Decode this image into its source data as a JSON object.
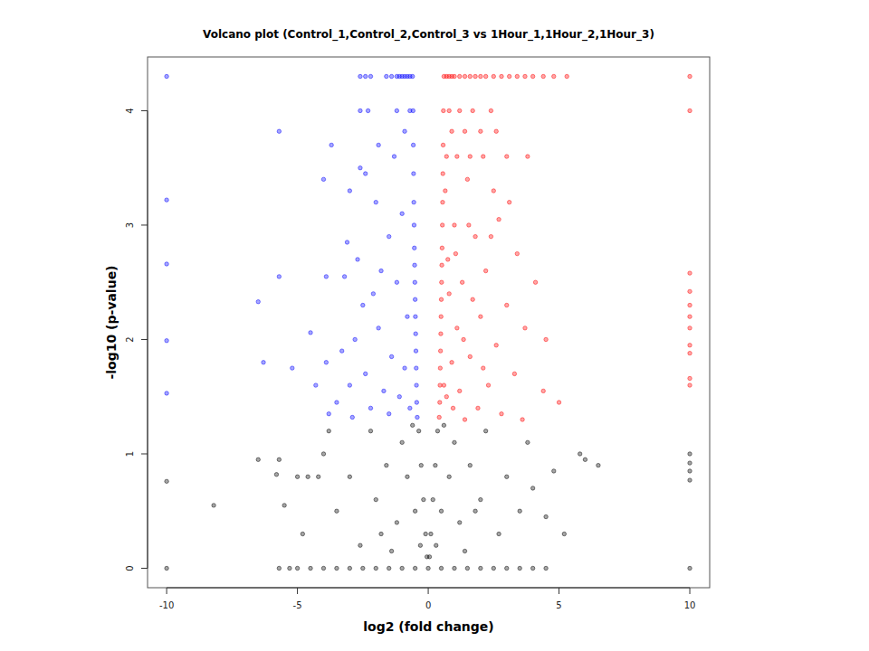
{
  "chart_data": {
    "type": "scatter",
    "title": "Volcano plot (Control_1,Control_2,Control_3 vs 1Hour_1,1Hour_2,1Hour_3)",
    "x_label": "log2 (fold change)",
    "y_label": "-log10 (p-value)",
    "xlim": [
      -10.73,
      10.76
    ],
    "ylim": [
      -0.17,
      4.47
    ],
    "xticks": [
      -10,
      -5,
      0,
      5,
      10
    ],
    "yticks": [
      0,
      1,
      2,
      3,
      4
    ],
    "grid": false,
    "marker": "circle",
    "series": [
      {
        "color": "#0000ff",
        "x": [
          -0.42,
          -0.44,
          -0.45,
          -0.46,
          -0.47,
          -0.48,
          -0.49,
          -0.5,
          -0.51,
          -0.52,
          -0.53,
          -0.54,
          -0.55,
          -0.56,
          -0.57,
          -0.58,
          -0.6,
          -0.7,
          -0.8,
          -0.9,
          -1.0,
          -1.1,
          -1.2,
          -1.4,
          -1.6,
          -2.2,
          -2.4,
          -2.6,
          -10,
          -0.7,
          -1.2,
          -2.3,
          -2.6,
          -5.7,
          -3.7,
          -1.9,
          -0.9,
          -1.3,
          -2.4,
          -2.6,
          -3.0,
          -4.0,
          -2.0,
          -1.0,
          -10,
          -1.5,
          -3.1,
          -2.7,
          -3.2,
          -3.9,
          -1.8,
          -2.1,
          -2.5,
          -1.2,
          -0.8,
          -6.5,
          -5.7,
          -10,
          -4.5,
          -2.8,
          -3.3,
          -1.9,
          -1.4,
          -0.9,
          -6.3,
          -5.2,
          -3.9,
          -10,
          -2.4,
          -3.0,
          -4.3,
          -1.7,
          -1.1,
          -10,
          -3.5,
          -2.2,
          -3.8,
          -0.7,
          -1.5,
          -2.9
        ],
        "values": [
          1.32,
          1.45,
          1.6,
          1.75,
          1.9,
          2.05,
          2.2,
          2.35,
          2.5,
          2.65,
          2.8,
          3.0,
          3.2,
          3.45,
          3.7,
          4.0,
          4.3,
          4.3,
          4.3,
          4.3,
          4.3,
          4.3,
          4.3,
          4.3,
          4.3,
          4.3,
          4.3,
          4.3,
          4.3,
          4.0,
          4.0,
          4.0,
          4.0,
          3.82,
          3.7,
          3.7,
          3.82,
          3.6,
          3.45,
          3.5,
          3.3,
          3.4,
          3.2,
          3.1,
          3.22,
          2.9,
          2.85,
          2.7,
          2.55,
          2.55,
          2.6,
          2.4,
          2.3,
          2.5,
          2.2,
          2.33,
          2.55,
          2.66,
          2.06,
          2.0,
          1.9,
          2.1,
          1.85,
          1.75,
          1.8,
          1.75,
          1.8,
          1.99,
          1.7,
          1.6,
          1.6,
          1.55,
          1.5,
          1.53,
          1.45,
          1.4,
          1.35,
          1.4,
          1.35,
          1.32
        ]
      },
      {
        "color": "#ff0000",
        "x": [
          0.42,
          0.44,
          0.45,
          0.46,
          0.47,
          0.48,
          0.49,
          0.5,
          0.51,
          0.52,
          0.53,
          0.54,
          0.55,
          0.56,
          0.57,
          0.58,
          0.6,
          0.7,
          0.8,
          0.9,
          1.0,
          1.2,
          1.4,
          1.6,
          1.8,
          2.0,
          2.2,
          2.5,
          2.8,
          3.1,
          3.4,
          3.7,
          4.0,
          4.4,
          4.8,
          5.3,
          10,
          0.8,
          1.2,
          1.7,
          2.4,
          10,
          0.9,
          1.4,
          2.0,
          2.6,
          0.7,
          1.1,
          1.6,
          2.1,
          3.0,
          3.8,
          1.5,
          2.5,
          3.1,
          1.0,
          2.7,
          1.8,
          3.4,
          4.1,
          2.2,
          1.3,
          0.8,
          3.0,
          2.0,
          1.1,
          3.7,
          4.5,
          2.6,
          1.6,
          0.9,
          3.3,
          2.3,
          1.2,
          4.4,
          5.0,
          0.7,
          1.9,
          2.8,
          3.6,
          1.4,
          10,
          10,
          10,
          10,
          10,
          10,
          10,
          10,
          10,
          0.6,
          0.75,
          0.65,
          1.05,
          1.35,
          1.7,
          2.1,
          2.4,
          0.95,
          1.55
        ],
        "values": [
          1.32,
          1.45,
          1.6,
          1.75,
          1.9,
          2.05,
          2.2,
          2.35,
          2.5,
          2.65,
          2.8,
          3.0,
          3.2,
          3.45,
          3.7,
          4.0,
          4.3,
          4.3,
          4.3,
          4.3,
          4.3,
          4.3,
          4.3,
          4.3,
          4.3,
          4.3,
          4.3,
          4.3,
          4.3,
          4.3,
          4.3,
          4.3,
          4.3,
          4.3,
          4.3,
          4.3,
          4.3,
          4.0,
          4.0,
          4.0,
          4.0,
          4.0,
          3.82,
          3.82,
          3.82,
          3.82,
          3.6,
          3.6,
          3.6,
          3.6,
          3.6,
          3.6,
          3.4,
          3.3,
          3.2,
          3.0,
          3.05,
          2.9,
          2.75,
          2.5,
          2.6,
          2.5,
          2.4,
          2.3,
          2.2,
          2.1,
          2.1,
          2.0,
          1.95,
          1.85,
          1.8,
          1.7,
          1.6,
          1.55,
          1.55,
          1.45,
          1.5,
          1.4,
          1.35,
          1.3,
          1.3,
          2.58,
          2.42,
          2.3,
          2.2,
          2.1,
          1.95,
          1.88,
          1.66,
          1.6,
          1.6,
          2.7,
          3.3,
          2.75,
          2.0,
          2.35,
          1.75,
          2.9,
          1.4,
          3.0
        ]
      },
      {
        "color": "#000000",
        "x": [
          -10,
          -5.7,
          -5.3,
          -5,
          -4.5,
          -4,
          -3.5,
          -3,
          -2.5,
          -2,
          -1.5,
          -1,
          -0.5,
          0,
          0.5,
          1,
          1.5,
          2,
          2.5,
          3,
          3.5,
          4,
          4.5,
          10,
          -0.05,
          0.05,
          -0.1,
          0.1,
          -0.18,
          0.18,
          -0.27,
          0.27,
          -0.36,
          0.36,
          -0.5,
          0.5,
          -0.8,
          0.8,
          -1.2,
          1.2,
          -1.0,
          1.0,
          -1.6,
          1.6,
          -2.0,
          2.0,
          -2.2,
          2.2,
          -3.0,
          3.0,
          -3.5,
          3.5,
          -4.0,
          4.0,
          -4.2,
          -4.6,
          -5.0,
          -5.8,
          -6.5,
          -5.7,
          -5.5,
          -4.8,
          -8.2,
          5.8,
          6.0,
          6.5,
          4.8,
          5.2,
          4.5,
          -10,
          10,
          10,
          10,
          10,
          -0.3,
          0.3,
          -0.6,
          0.6,
          -1.4,
          1.4,
          -2.6,
          2.7,
          3.8,
          -3.8,
          -1.8,
          1.8
        ],
        "values": [
          0,
          0,
          0,
          0,
          0,
          0,
          0,
          0,
          0,
          0,
          0,
          0,
          0,
          0,
          0,
          0,
          0,
          0,
          0,
          0,
          0,
          0,
          0,
          0,
          0.1,
          0.1,
          0.3,
          0.3,
          0.6,
          0.6,
          0.9,
          0.9,
          1.2,
          1.2,
          0.5,
          0.5,
          0.8,
          0.8,
          0.4,
          0.4,
          1.1,
          1.1,
          0.9,
          0.9,
          0.6,
          0.6,
          1.2,
          1.2,
          0.8,
          0.8,
          0.5,
          0.5,
          1.0,
          0.7,
          0.8,
          0.8,
          0.8,
          0.82,
          0.95,
          0.95,
          0.55,
          0.3,
          0.55,
          1.0,
          0.95,
          0.9,
          0.85,
          0.3,
          0.45,
          0.76,
          1.0,
          0.92,
          0.85,
          0.77,
          0.2,
          0.2,
          1.25,
          1.25,
          0.15,
          0.15,
          0.2,
          0.3,
          1.1,
          1.2,
          0.3,
          0.5
        ]
      }
    ]
  }
}
